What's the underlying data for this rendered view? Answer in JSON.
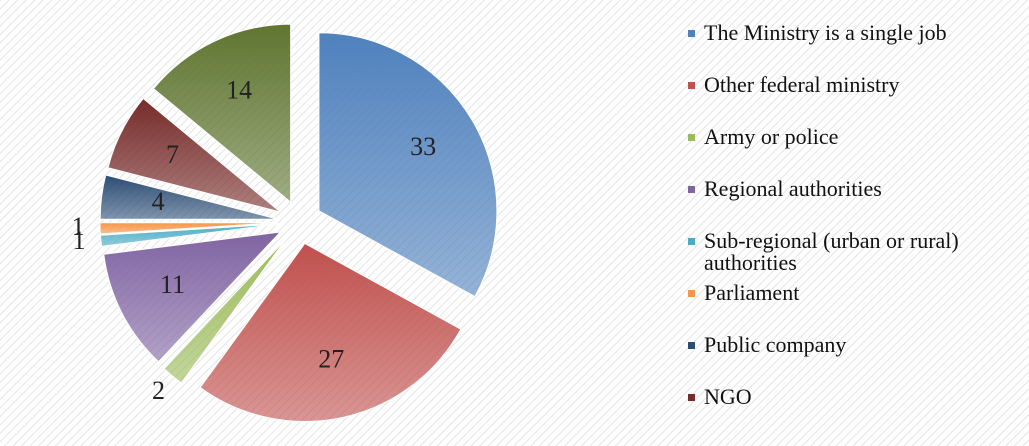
{
  "chart_data": {
    "type": "pie",
    "categories": [
      "The Ministry is a single job",
      "Other federal ministry",
      "Army or police",
      "Regional authorities",
      "Sub-regional (urban or rural) authorities",
      "Parliament",
      "Public company",
      "NGO",
      null
    ],
    "values": [
      33,
      27,
      2,
      11,
      1,
      1,
      4,
      7,
      14
    ],
    "colors": [
      "#4f81bd",
      "#c0504d",
      "#9bbb59",
      "#8064a2",
      "#4bacc6",
      "#f79646",
      "#2c4d75",
      "#772c2a",
      "#5f7530"
    ],
    "exploded": true
  }
}
